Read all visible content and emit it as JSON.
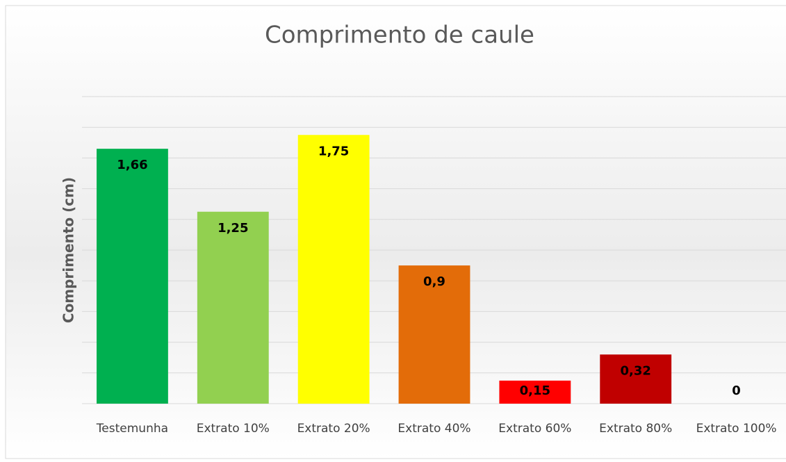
{
  "chart_data": {
    "type": "bar",
    "title": "Comprimento de caule",
    "y_label": "Comprimento (cm)",
    "categories": [
      "Testemunha",
      "Extrato 10%",
      "Extrato 20%",
      "Extrato 40%",
      "Extrato 60%",
      "Extrato 80%",
      "Extrato 100%"
    ],
    "values": [
      1.66,
      1.25,
      1.75,
      0.9,
      0.15,
      0.32,
      0
    ],
    "value_labels": [
      "1,66",
      "1,25",
      "1,75",
      "0,9",
      "0,15",
      "0,32",
      "0"
    ],
    "colors": [
      "#00b050",
      "#92d050",
      "#ffff00",
      "#e36c09",
      "#ff0000",
      "#c00000",
      "#7f7f7f"
    ],
    "ylim": [
      0,
      2
    ],
    "yticks": [
      0,
      0.2,
      0.4,
      0.6,
      0.8,
      1,
      1.2,
      1.4,
      1.6,
      1.8,
      2
    ],
    "grid": true
  }
}
